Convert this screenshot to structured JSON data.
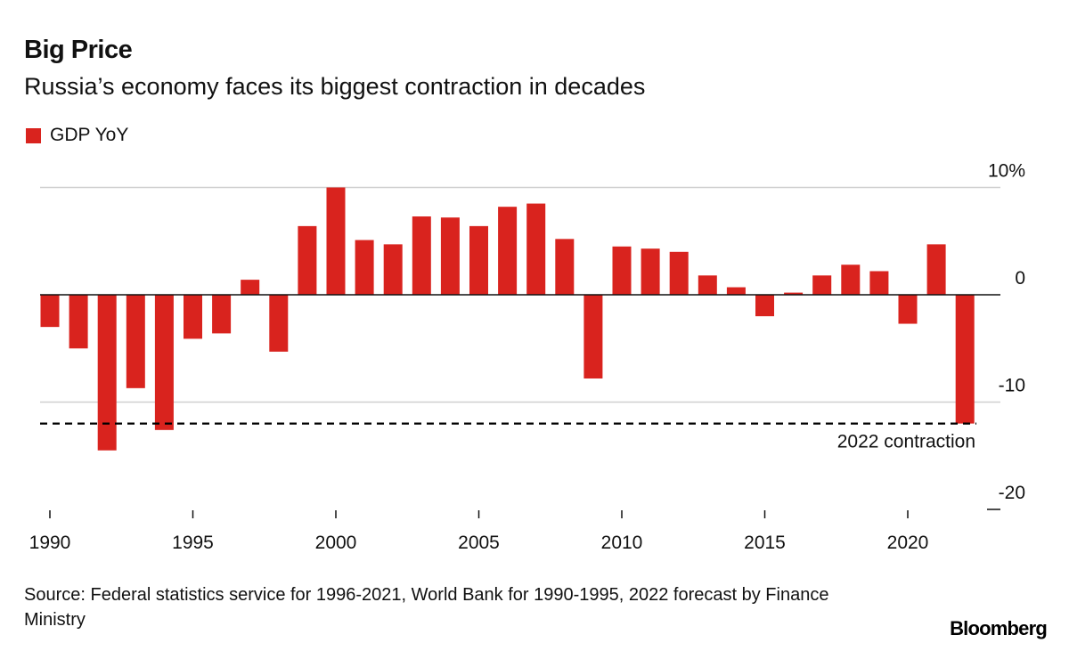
{
  "header": {
    "title": "Big Price",
    "subtitle": "Russia’s economy faces its biggest contraction in decades"
  },
  "footer": {
    "source": "Source: Federal statistics service for 1996-2021, World Bank for 1990-1995, 2022 forecast by Finance Ministry",
    "brand": "Bloomberg"
  },
  "colors": {
    "bar": "#d9231e",
    "grid": "#d0d0d0",
    "axis": "#111111"
  },
  "chart_data": {
    "type": "bar",
    "title": "Big Price",
    "subtitle": "Russia’s economy faces its biggest contraction in decades",
    "xlabel": "",
    "ylabel": "",
    "legend": {
      "position": "top-left",
      "entries": [
        "GDP YoY"
      ]
    },
    "grid": true,
    "ylim": [
      -20,
      10
    ],
    "y_ticks": [
      10,
      0,
      -10,
      -20
    ],
    "y_tick_labels": [
      "10%",
      "0",
      "-10",
      "-20"
    ],
    "x_ticks": [
      1990,
      1995,
      2000,
      2005,
      2010,
      2015,
      2020
    ],
    "x_tick_labels": [
      "1990",
      "1995",
      "2000",
      "2005",
      "2010",
      "2015",
      "2020"
    ],
    "categories": [
      1990,
      1991,
      1992,
      1993,
      1994,
      1995,
      1996,
      1997,
      1998,
      1999,
      2000,
      2001,
      2002,
      2003,
      2004,
      2005,
      2006,
      2007,
      2008,
      2009,
      2010,
      2011,
      2012,
      2013,
      2014,
      2015,
      2016,
      2017,
      2018,
      2019,
      2020,
      2021,
      2022
    ],
    "series": [
      {
        "name": "GDP YoY",
        "values": [
          -3.0,
          -5.0,
          -14.5,
          -8.7,
          -12.6,
          -4.1,
          -3.6,
          1.4,
          -5.3,
          6.4,
          10.0,
          5.1,
          4.7,
          7.3,
          7.2,
          6.4,
          8.2,
          8.5,
          5.2,
          -7.8,
          4.5,
          4.3,
          4.0,
          1.8,
          0.7,
          -2.0,
          0.2,
          1.8,
          2.8,
          2.2,
          -2.7,
          4.7,
          -12.0
        ]
      }
    ],
    "annotations": [
      {
        "type": "hline",
        "style": "dashed",
        "value": -12.0,
        "label": "2022 contraction"
      }
    ]
  }
}
